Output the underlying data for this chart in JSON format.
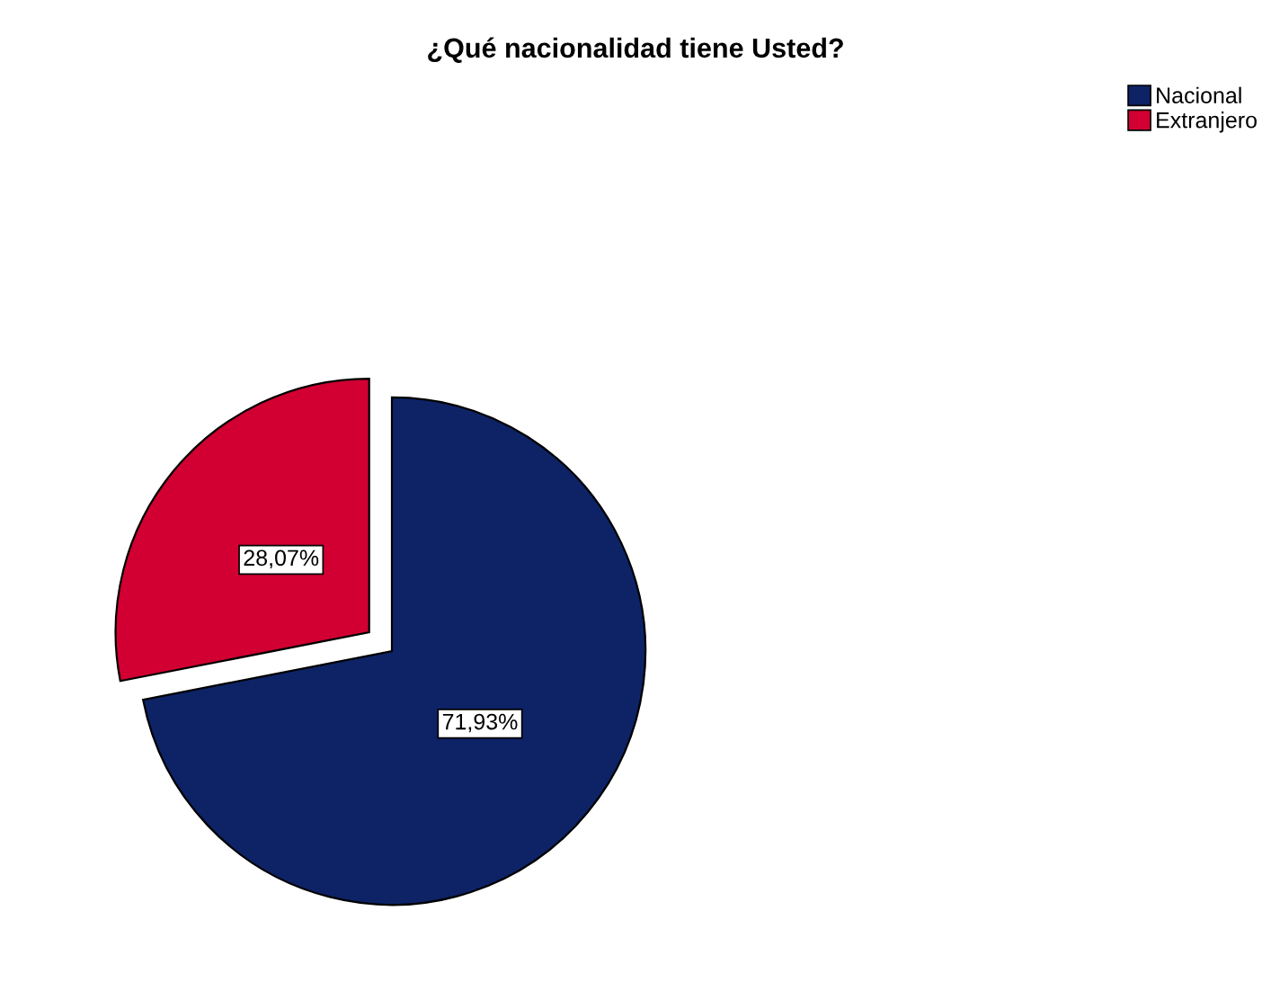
{
  "chart_data": {
    "type": "pie",
    "title": "¿Qué nacionalidad tiene Usted?",
    "categories": [
      "Nacional",
      "Extranjero"
    ],
    "values": [
      71.93,
      28.07
    ],
    "colors": [
      "#0d2366",
      "#d20032"
    ],
    "value_labels": [
      "71,93%",
      "28,07%"
    ],
    "legend": "top right"
  }
}
